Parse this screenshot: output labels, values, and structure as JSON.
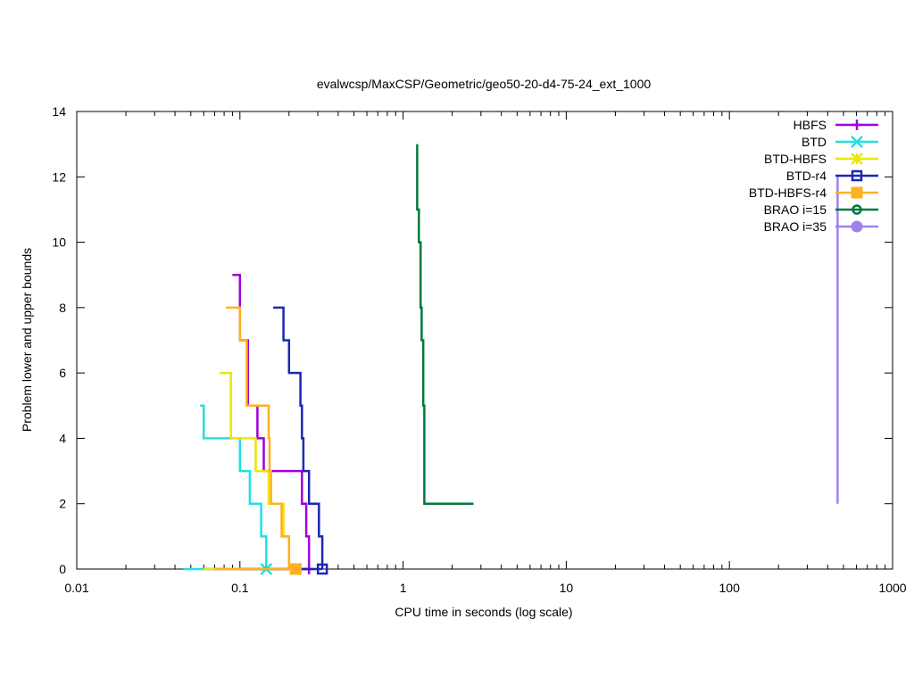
{
  "chart_data": {
    "type": "line",
    "title": "evalwcsp/MaxCSP/Geometric/geo50-20-d4-75-24_ext_1000",
    "xlabel": "CPU time in seconds (log scale)",
    "ylabel": "Problem lower and upper bounds",
    "xscale": "log",
    "xlim": [
      0.01,
      1000
    ],
    "ylim": [
      0,
      14
    ],
    "x_ticks": [
      0.01,
      0.1,
      1,
      10,
      100,
      1000
    ],
    "x_tick_labels": [
      "0.01",
      "0.1",
      "1",
      "10",
      "100",
      "1000"
    ],
    "y_ticks": [
      0,
      2,
      4,
      6,
      8,
      10,
      12,
      14
    ],
    "y_tick_labels": [
      "0",
      "2",
      "4",
      "6",
      "8",
      "10",
      "12",
      "14"
    ],
    "legend_position": "top-right",
    "series": [
      {
        "name": "HBFS",
        "color": "#a000d8",
        "marker": "plus",
        "upper": [
          [
            0.09,
            9
          ],
          [
            0.1,
            9
          ],
          [
            0.1,
            7
          ],
          [
            0.112,
            7
          ],
          [
            0.112,
            5
          ],
          [
            0.128,
            5
          ],
          [
            0.128,
            4
          ],
          [
            0.14,
            4
          ],
          [
            0.14,
            3
          ],
          [
            0.24,
            3
          ],
          [
            0.24,
            2
          ],
          [
            0.255,
            2
          ],
          [
            0.255,
            1
          ],
          [
            0.265,
            1
          ],
          [
            0.265,
            0
          ]
        ],
        "lower": [
          [
            0.06,
            0
          ],
          [
            0.265,
            0
          ]
        ],
        "marker_points": [
          [
            0.265,
            0
          ]
        ]
      },
      {
        "name": "BTD",
        "color": "#22e0e0",
        "marker": "cross",
        "upper": [
          [
            0.057,
            5
          ],
          [
            0.06,
            5
          ],
          [
            0.06,
            4
          ],
          [
            0.1,
            4
          ],
          [
            0.1,
            3
          ],
          [
            0.115,
            3
          ],
          [
            0.115,
            2
          ],
          [
            0.135,
            2
          ],
          [
            0.135,
            1
          ],
          [
            0.145,
            1
          ],
          [
            0.145,
            0
          ]
        ],
        "lower": [
          [
            0.045,
            0
          ],
          [
            0.145,
            0
          ]
        ],
        "marker_points": [
          [
            0.145,
            0
          ]
        ]
      },
      {
        "name": "BTD-HBFS",
        "color": "#e8e800",
        "marker": "star",
        "upper": [
          [
            0.075,
            6
          ],
          [
            0.088,
            6
          ],
          [
            0.088,
            4
          ],
          [
            0.125,
            4
          ],
          [
            0.125,
            3
          ],
          [
            0.15,
            3
          ],
          [
            0.15,
            2
          ],
          [
            0.185,
            2
          ],
          [
            0.185,
            1
          ],
          [
            0.2,
            1
          ],
          [
            0.2,
            0
          ],
          [
            0.22,
            0
          ]
        ],
        "lower": [
          [
            0.06,
            0
          ],
          [
            0.22,
            0
          ]
        ],
        "marker_points": [
          [
            0.22,
            0
          ]
        ]
      },
      {
        "name": "BTD-r4",
        "color": "#1c28b4",
        "marker": "open-square",
        "upper": [
          [
            0.16,
            8
          ],
          [
            0.185,
            8
          ],
          [
            0.185,
            7
          ],
          [
            0.2,
            7
          ],
          [
            0.2,
            6
          ],
          [
            0.235,
            6
          ],
          [
            0.235,
            5
          ],
          [
            0.24,
            5
          ],
          [
            0.24,
            4
          ],
          [
            0.245,
            4
          ],
          [
            0.245,
            3
          ],
          [
            0.265,
            3
          ],
          [
            0.265,
            2
          ],
          [
            0.305,
            2
          ],
          [
            0.305,
            1
          ],
          [
            0.32,
            1
          ],
          [
            0.32,
            0
          ]
        ],
        "lower": [
          [
            0.1,
            0
          ],
          [
            0.32,
            0
          ]
        ],
        "marker_points": [
          [
            0.32,
            0
          ]
        ]
      },
      {
        "name": "BTD-HBFS-r4",
        "color": "#ffb020",
        "marker": "filled-square",
        "upper": [
          [
            0.082,
            8
          ],
          [
            0.1,
            8
          ],
          [
            0.1,
            7
          ],
          [
            0.11,
            7
          ],
          [
            0.11,
            5
          ],
          [
            0.15,
            5
          ],
          [
            0.15,
            4
          ],
          [
            0.152,
            4
          ],
          [
            0.152,
            3
          ],
          [
            0.155,
            3
          ],
          [
            0.155,
            2
          ],
          [
            0.18,
            2
          ],
          [
            0.18,
            1
          ],
          [
            0.2,
            1
          ],
          [
            0.2,
            0
          ],
          [
            0.22,
            0
          ]
        ],
        "lower": [
          [
            0.07,
            0
          ],
          [
            0.22,
            0
          ]
        ],
        "marker_points": [
          [
            0.22,
            0
          ]
        ]
      },
      {
        "name": "BRAO i=15",
        "color": "#007840",
        "marker": "open-circle",
        "upper": [
          [
            1.22,
            13
          ],
          [
            1.22,
            11
          ],
          [
            1.25,
            11
          ],
          [
            1.25,
            10
          ],
          [
            1.28,
            10
          ],
          [
            1.28,
            8
          ],
          [
            1.3,
            8
          ],
          [
            1.3,
            7
          ],
          [
            1.33,
            7
          ],
          [
            1.33,
            5
          ],
          [
            1.35,
            5
          ],
          [
            1.35,
            2
          ],
          [
            2.7,
            2
          ]
        ],
        "lower": [],
        "marker_points": []
      },
      {
        "name": "BRAO i=35",
        "color": "#a080f0",
        "marker": "filled-circle",
        "upper": [
          [
            460,
            2
          ],
          [
            460,
            12
          ]
        ],
        "lower": [],
        "marker_points": []
      }
    ]
  }
}
